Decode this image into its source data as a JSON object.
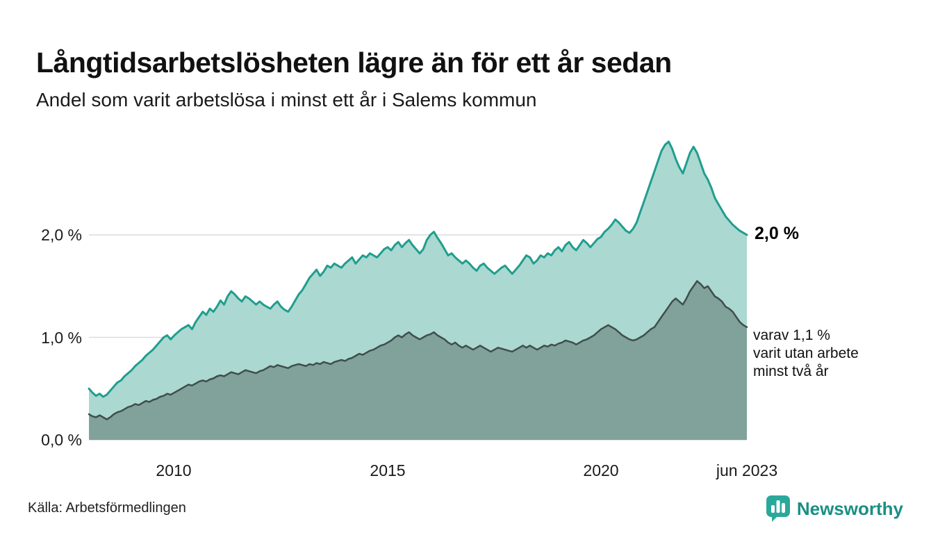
{
  "header": {
    "title": "Långtidsarbetslösheten lägre än för ett år sedan",
    "subtitle": "Andel som varit arbetslösa i minst ett år i Salems kommun"
  },
  "annotations": {
    "end_value_label": "2,0 %",
    "secondary_lines": [
      "varav 1,1 %",
      "varit utan arbete",
      "minst två år"
    ]
  },
  "footer": {
    "source": "Källa: Arbetsförmedlingen",
    "brand_name": "Newsworthy"
  },
  "colors": {
    "accent_teal": "#1f9e8e",
    "fill_teal": "#abd8d1",
    "dark_line": "#3f4e4b",
    "dark_fill": "#81a19b",
    "grid": "#dcdcdc",
    "brand_teal": "#2aa99b"
  },
  "chart_data": {
    "type": "area",
    "title": "Långtidsarbetslösheten lägre än för ett år sedan",
    "subtitle": "Andel som varit arbetslösa i minst ett år i Salems kommun",
    "unit": "%",
    "frequency": "monthly",
    "start": "2008-01",
    "end": "2023-06",
    "ylim": [
      0,
      3.1
    ],
    "gridlines": [
      0,
      1,
      2
    ],
    "y_tick_labels": [
      "0,0 %",
      "1,0 %",
      "2,0 %"
    ],
    "x_ticks": [
      {
        "label": "2010",
        "index": 24
      },
      {
        "label": "2015",
        "index": 84
      },
      {
        "label": "2020",
        "index": 144
      },
      {
        "label": "jun 2023",
        "index": 185
      }
    ],
    "series": [
      {
        "name": "Arbetslösa minst ett år",
        "end_value": 2.0,
        "line_color": "#1f9e8e",
        "fill_color": "#abd8d1",
        "values": [
          0.5,
          0.46,
          0.43,
          0.45,
          0.42,
          0.44,
          0.48,
          0.52,
          0.56,
          0.58,
          0.62,
          0.65,
          0.68,
          0.72,
          0.75,
          0.78,
          0.82,
          0.85,
          0.88,
          0.92,
          0.96,
          1.0,
          1.02,
          0.98,
          1.02,
          1.05,
          1.08,
          1.1,
          1.12,
          1.08,
          1.15,
          1.2,
          1.25,
          1.22,
          1.28,
          1.25,
          1.3,
          1.36,
          1.32,
          1.4,
          1.45,
          1.42,
          1.38,
          1.35,
          1.4,
          1.38,
          1.35,
          1.32,
          1.35,
          1.32,
          1.3,
          1.28,
          1.32,
          1.35,
          1.3,
          1.27,
          1.25,
          1.3,
          1.36,
          1.42,
          1.46,
          1.52,
          1.58,
          1.62,
          1.66,
          1.6,
          1.64,
          1.7,
          1.68,
          1.72,
          1.7,
          1.68,
          1.72,
          1.75,
          1.78,
          1.72,
          1.76,
          1.8,
          1.78,
          1.82,
          1.8,
          1.78,
          1.82,
          1.86,
          1.88,
          1.85,
          1.9,
          1.93,
          1.88,
          1.92,
          1.95,
          1.9,
          1.86,
          1.82,
          1.86,
          1.95,
          2.0,
          2.03,
          1.97,
          1.92,
          1.86,
          1.8,
          1.82,
          1.78,
          1.75,
          1.72,
          1.75,
          1.72,
          1.68,
          1.65,
          1.7,
          1.72,
          1.68,
          1.65,
          1.62,
          1.65,
          1.68,
          1.7,
          1.66,
          1.62,
          1.66,
          1.7,
          1.75,
          1.8,
          1.78,
          1.72,
          1.75,
          1.8,
          1.78,
          1.82,
          1.8,
          1.85,
          1.88,
          1.84,
          1.9,
          1.93,
          1.88,
          1.85,
          1.9,
          1.95,
          1.92,
          1.88,
          1.92,
          1.96,
          1.98,
          2.03,
          2.06,
          2.1,
          2.15,
          2.12,
          2.08,
          2.04,
          2.02,
          2.06,
          2.12,
          2.22,
          2.32,
          2.42,
          2.52,
          2.62,
          2.72,
          2.82,
          2.88,
          2.91,
          2.84,
          2.74,
          2.66,
          2.6,
          2.7,
          2.8,
          2.86,
          2.8,
          2.7,
          2.6,
          2.54,
          2.46,
          2.36,
          2.3,
          2.24,
          2.18,
          2.14,
          2.1,
          2.07,
          2.04,
          2.02,
          2.0
        ]
      },
      {
        "name": "Arbetslösa minst två år",
        "end_value": 1.1,
        "line_color": "#3f4e4b",
        "fill_color": "#81a19b",
        "values": [
          0.25,
          0.23,
          0.22,
          0.24,
          0.22,
          0.2,
          0.22,
          0.25,
          0.27,
          0.28,
          0.3,
          0.32,
          0.33,
          0.35,
          0.34,
          0.36,
          0.38,
          0.37,
          0.39,
          0.4,
          0.42,
          0.43,
          0.45,
          0.44,
          0.46,
          0.48,
          0.5,
          0.52,
          0.54,
          0.53,
          0.55,
          0.57,
          0.58,
          0.57,
          0.59,
          0.6,
          0.62,
          0.63,
          0.62,
          0.64,
          0.66,
          0.65,
          0.64,
          0.66,
          0.68,
          0.67,
          0.66,
          0.65,
          0.67,
          0.68,
          0.7,
          0.72,
          0.71,
          0.73,
          0.72,
          0.71,
          0.7,
          0.72,
          0.73,
          0.74,
          0.73,
          0.72,
          0.74,
          0.73,
          0.75,
          0.74,
          0.76,
          0.75,
          0.74,
          0.76,
          0.77,
          0.78,
          0.77,
          0.79,
          0.8,
          0.82,
          0.84,
          0.83,
          0.85,
          0.87,
          0.88,
          0.9,
          0.92,
          0.93,
          0.95,
          0.97,
          1.0,
          1.02,
          1.0,
          1.03,
          1.05,
          1.02,
          1.0,
          0.98,
          1.0,
          1.02,
          1.03,
          1.05,
          1.02,
          1.0,
          0.98,
          0.95,
          0.93,
          0.95,
          0.92,
          0.9,
          0.92,
          0.9,
          0.88,
          0.9,
          0.92,
          0.9,
          0.88,
          0.86,
          0.88,
          0.9,
          0.89,
          0.88,
          0.87,
          0.86,
          0.88,
          0.9,
          0.92,
          0.9,
          0.92,
          0.9,
          0.88,
          0.9,
          0.92,
          0.91,
          0.93,
          0.92,
          0.94,
          0.95,
          0.97,
          0.96,
          0.95,
          0.93,
          0.95,
          0.97,
          0.98,
          1.0,
          1.02,
          1.05,
          1.08,
          1.1,
          1.12,
          1.1,
          1.08,
          1.05,
          1.02,
          1.0,
          0.98,
          0.97,
          0.98,
          1.0,
          1.02,
          1.05,
          1.08,
          1.1,
          1.15,
          1.2,
          1.25,
          1.3,
          1.35,
          1.38,
          1.35,
          1.32,
          1.38,
          1.45,
          1.5,
          1.55,
          1.52,
          1.48,
          1.5,
          1.45,
          1.4,
          1.38,
          1.35,
          1.3,
          1.28,
          1.25,
          1.2,
          1.15,
          1.12,
          1.1
        ]
      }
    ]
  }
}
